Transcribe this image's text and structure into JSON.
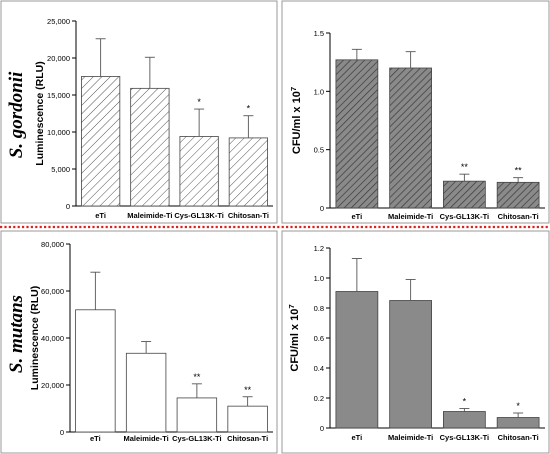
{
  "figure": {
    "row_labels": [
      "S. gordonii",
      "S. mutans"
    ],
    "divider_color": "#e02020"
  },
  "chart_data": [
    {
      "type": "bar",
      "panel": "top-left",
      "categories": [
        "eTi",
        "Maleimide-Ti",
        "Cys-GL13K-Ti",
        "Chitosan-Ti"
      ],
      "values": [
        17500,
        15900,
        9400,
        9200
      ],
      "errors": [
        5100,
        4200,
        3700,
        3000
      ],
      "significance": [
        "",
        "",
        "*",
        "*"
      ],
      "ylabel": "Luminescence (RLU)",
      "ylabel_sup": "",
      "ylim": [
        0,
        25000
      ],
      "yticks": [
        0,
        5000,
        10000,
        15000,
        20000,
        25000
      ],
      "ytick_labels": [
        "0",
        "5,000",
        "10,000",
        "15,000",
        "20,000",
        "25,000"
      ],
      "fill": "hatch-light",
      "bar_color": "#ffffff",
      "grid": false
    },
    {
      "type": "bar",
      "panel": "top-right",
      "categories": [
        "eTi",
        "Maleimide-Ti",
        "Cys-GL13K-Ti",
        "Chitosan-Ti"
      ],
      "values": [
        1.27,
        1.2,
        0.23,
        0.22
      ],
      "errors": [
        0.09,
        0.14,
        0.06,
        0.04
      ],
      "significance": [
        "",
        "",
        "**",
        "**"
      ],
      "ylabel": "CFU/ml x 10",
      "ylabel_sup": "7",
      "ylim": [
        0,
        1.5
      ],
      "yticks": [
        0,
        0.5,
        1.0,
        1.5
      ],
      "ytick_labels": [
        "0",
        "0.5",
        "1.0",
        "1.5"
      ],
      "fill": "hatch-dark",
      "bar_color": "#8a8a8a",
      "grid": false
    },
    {
      "type": "bar",
      "panel": "bottom-left",
      "categories": [
        "eTi",
        "Maleimide-Ti",
        "Cys-GL13K-Ti",
        "Chitosan-Ti"
      ],
      "values": [
        52000,
        33500,
        14500,
        11000
      ],
      "errors": [
        16000,
        5000,
        6000,
        4000
      ],
      "significance": [
        "",
        "",
        "**",
        "**"
      ],
      "ylabel": "Luminescence (RLU)",
      "ylabel_sup": "",
      "ylim": [
        0,
        80000
      ],
      "yticks": [
        0,
        20000,
        40000,
        60000,
        80000
      ],
      "ytick_labels": [
        "0",
        "20,000",
        "40,000",
        "60,000",
        "80,000"
      ],
      "fill": "solid",
      "bar_color": "#ffffff",
      "grid": false
    },
    {
      "type": "bar",
      "panel": "bottom-right",
      "categories": [
        "eTi",
        "Maleimide-Ti",
        "Cys-GL13K-Ti",
        "Chitosan-Ti"
      ],
      "values": [
        0.91,
        0.85,
        0.11,
        0.07
      ],
      "errors": [
        0.22,
        0.14,
        0.02,
        0.03
      ],
      "significance": [
        "",
        "",
        "*",
        "*"
      ],
      "ylabel": "CFU/ml x 10",
      "ylabel_sup": "7",
      "ylim": [
        0,
        1.2
      ],
      "yticks": [
        0,
        0.2,
        0.4,
        0.6,
        0.8,
        1.0,
        1.2
      ],
      "ytick_labels": [
        "0",
        "0.2",
        "0.4",
        "0.6",
        "0.8",
        "1.0",
        "1.2"
      ],
      "fill": "solid",
      "bar_color": "#8a8a8a",
      "grid": false
    }
  ]
}
